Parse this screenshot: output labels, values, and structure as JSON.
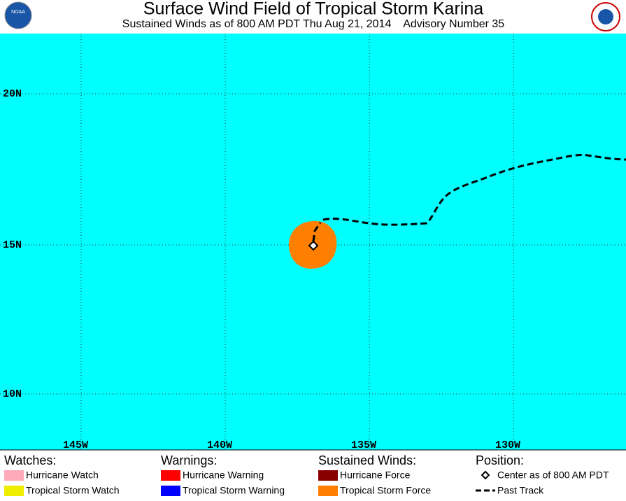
{
  "header": {
    "logo_left": "NOAA",
    "title": "Surface Wind Field of Tropical Storm Karina",
    "subtitle": "Sustained Winds as of 800 AM PDT Thu Aug 21, 2014    Advisory Number 35"
  },
  "map": {
    "lat_labels": [
      "20N",
      "15N",
      "10N"
    ],
    "lon_labels": [
      "145W",
      "140W",
      "135W",
      "130W"
    ]
  },
  "legend": {
    "watches": {
      "heading": "Watches:",
      "items": [
        "Hurricane Watch",
        "Tropical Storm Watch"
      ]
    },
    "warnings": {
      "heading": "Warnings:",
      "items": [
        "Hurricane Warning",
        "Tropical Storm Warning"
      ]
    },
    "winds": {
      "heading": "Sustained Winds:",
      "items": [
        "Hurricane Force",
        "Tropical Storm Force"
      ]
    },
    "position": {
      "heading": "Position:",
      "items": [
        "Center as of 800 AM PDT",
        "Past Track"
      ]
    }
  }
}
